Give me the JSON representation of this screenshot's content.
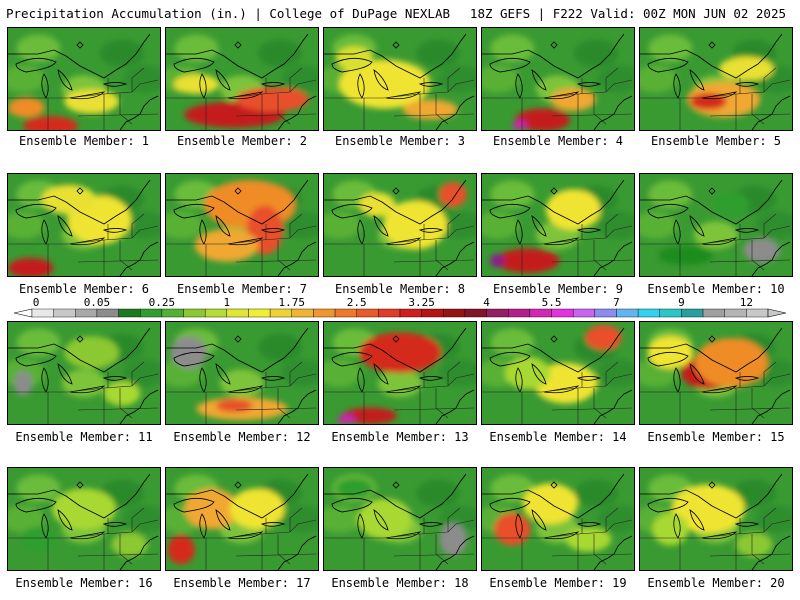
{
  "header": {
    "left_title": "Precipitation Accumulation (in.) | College of DuPage NEXLAB",
    "right_title": "18Z GEFS | F222 Valid: 00Z MON JUN 02 2025"
  },
  "caption_prefix": "Ensemble Member: ",
  "members": [
    {
      "id": 1,
      "label": "Ensemble Member: 1",
      "heavy": [
        [
          0.28,
          0.96,
          0.3,
          0.12,
          "#d42a1e"
        ],
        [
          0.12,
          0.78,
          0.2,
          0.12,
          "#f08c28"
        ],
        [
          0.55,
          0.72,
          0.3,
          0.15,
          "#e8e032"
        ]
      ]
    },
    {
      "id": 2,
      "label": "Ensemble Member: 2",
      "heavy": [
        [
          0.45,
          0.85,
          0.55,
          0.16,
          "#c41e1e"
        ],
        [
          0.7,
          0.7,
          0.4,
          0.15,
          "#e8502a"
        ],
        [
          0.2,
          0.55,
          0.25,
          0.12,
          "#e8e032"
        ]
      ]
    },
    {
      "id": 3,
      "label": "Ensemble Member: 3",
      "heavy": [
        [
          0.4,
          0.55,
          0.5,
          0.3,
          "#f0e432"
        ],
        [
          0.7,
          0.8,
          0.3,
          0.12,
          "#f0a830"
        ],
        [
          0.2,
          0.3,
          0.2,
          0.15,
          "#d8e030"
        ]
      ]
    },
    {
      "id": 4,
      "label": "Ensemble Member: 4",
      "heavy": [
        [
          0.4,
          0.9,
          0.3,
          0.14,
          "#c41e1e"
        ],
        [
          0.25,
          0.95,
          0.08,
          0.06,
          "#c828a8"
        ],
        [
          0.6,
          0.7,
          0.25,
          0.14,
          "#f0a830"
        ]
      ]
    },
    {
      "id": 5,
      "label": "Ensemble Member: 5",
      "heavy": [
        [
          0.55,
          0.7,
          0.4,
          0.22,
          "#f0a830"
        ],
        [
          0.45,
          0.72,
          0.2,
          0.1,
          "#d42a1e"
        ],
        [
          0.7,
          0.4,
          0.3,
          0.15,
          "#e8e032"
        ]
      ]
    },
    {
      "id": 6,
      "label": "Ensemble Member: 6",
      "heavy": [
        [
          0.15,
          0.92,
          0.25,
          0.12,
          "#c41e1e"
        ],
        [
          0.6,
          0.45,
          0.35,
          0.3,
          "#f0e432"
        ],
        [
          0.4,
          0.25,
          0.3,
          0.18,
          "#e8e032"
        ]
      ]
    },
    {
      "id": 7,
      "label": "Ensemble Member: 7",
      "heavy": [
        [
          0.55,
          0.3,
          0.5,
          0.3,
          "#f08c28"
        ],
        [
          0.65,
          0.55,
          0.2,
          0.3,
          "#e8502a"
        ],
        [
          0.4,
          0.7,
          0.35,
          0.2,
          "#f0a830"
        ]
      ]
    },
    {
      "id": 8,
      "label": "Ensemble Member: 8",
      "heavy": [
        [
          0.6,
          0.5,
          0.35,
          0.3,
          "#f0e432"
        ],
        [
          0.85,
          0.2,
          0.15,
          0.15,
          "#e8502a"
        ],
        [
          0.35,
          0.3,
          0.2,
          0.15,
          "#e8e032"
        ]
      ]
    },
    {
      "id": 9,
      "label": "Ensemble Member: 9",
      "heavy": [
        [
          0.3,
          0.85,
          0.35,
          0.15,
          "#c41e1e"
        ],
        [
          0.1,
          0.85,
          0.08,
          0.08,
          "#8c1e8c"
        ],
        [
          0.6,
          0.35,
          0.3,
          0.25,
          "#f0e432"
        ]
      ]
    },
    {
      "id": 10,
      "label": "Ensemble Member: 10",
      "heavy": [
        [
          0.8,
          0.75,
          0.2,
          0.15,
          "#8c8c8c"
        ],
        [
          0.3,
          0.8,
          0.3,
          0.12,
          "#1e8c1e"
        ],
        [
          0.6,
          0.3,
          0.2,
          0.15,
          "#2e9e2e"
        ]
      ]
    },
    {
      "id": 11,
      "label": "Ensemble Member: 11",
      "heavy": [
        [
          0.1,
          0.6,
          0.1,
          0.15,
          "#8c8c8c"
        ],
        [
          0.55,
          0.3,
          0.3,
          0.2,
          "#8cc830"
        ],
        [
          0.75,
          0.7,
          0.2,
          0.15,
          "#a8d832"
        ]
      ]
    },
    {
      "id": 12,
      "label": "Ensemble Member: 12",
      "heavy": [
        [
          0.5,
          0.85,
          0.5,
          0.14,
          "#f0a830"
        ],
        [
          0.45,
          0.82,
          0.2,
          0.08,
          "#e8502a"
        ],
        [
          0.15,
          0.3,
          0.2,
          0.2,
          "#8c8c8c"
        ]
      ]
    },
    {
      "id": 13,
      "label": "Ensemble Member: 13",
      "heavy": [
        [
          0.5,
          0.3,
          0.45,
          0.25,
          "#d42a1e"
        ],
        [
          0.3,
          0.92,
          0.3,
          0.1,
          "#c41e1e"
        ],
        [
          0.15,
          0.95,
          0.1,
          0.06,
          "#c828a8"
        ]
      ]
    },
    {
      "id": 14,
      "label": "Ensemble Member: 14",
      "heavy": [
        [
          0.8,
          0.15,
          0.2,
          0.15,
          "#e8502a"
        ],
        [
          0.55,
          0.6,
          0.35,
          0.25,
          "#f0e432"
        ],
        [
          0.3,
          0.5,
          0.25,
          0.2,
          "#a8d832"
        ]
      ]
    },
    {
      "id": 15,
      "label": "Ensemble Member: 15",
      "heavy": [
        [
          0.45,
          0.5,
          0.3,
          0.2,
          "#c41e1e"
        ],
        [
          0.6,
          0.4,
          0.4,
          0.3,
          "#f08c28"
        ],
        [
          0.2,
          0.3,
          0.25,
          0.2,
          "#f0e432"
        ]
      ]
    },
    {
      "id": 16,
      "label": "Ensemble Member: 16",
      "heavy": [
        [
          0.5,
          0.4,
          0.35,
          0.25,
          "#a8d832"
        ],
        [
          0.8,
          0.75,
          0.2,
          0.15,
          "#8cc830"
        ],
        [
          0.2,
          0.7,
          0.2,
          0.15,
          "#2e9e2e"
        ]
      ]
    },
    {
      "id": 17,
      "label": "Ensemble Member: 17",
      "heavy": [
        [
          0.1,
          0.8,
          0.15,
          0.18,
          "#d42a1e"
        ],
        [
          0.3,
          0.4,
          0.3,
          0.25,
          "#f0a830"
        ],
        [
          0.6,
          0.4,
          0.3,
          0.25,
          "#f0e432"
        ]
      ]
    },
    {
      "id": 18,
      "label": "Ensemble Member: 18",
      "heavy": [
        [
          0.85,
          0.7,
          0.15,
          0.2,
          "#8c8c8c"
        ],
        [
          0.4,
          0.5,
          0.3,
          0.25,
          "#a8d832"
        ],
        [
          0.2,
          0.2,
          0.2,
          0.12,
          "#2e9e2e"
        ]
      ]
    },
    {
      "id": 19,
      "label": "Ensemble Member: 19",
      "heavy": [
        [
          0.2,
          0.6,
          0.2,
          0.2,
          "#e8502a"
        ],
        [
          0.45,
          0.35,
          0.3,
          0.25,
          "#f0e432"
        ],
        [
          0.7,
          0.7,
          0.25,
          0.15,
          "#a8d832"
        ]
      ]
    },
    {
      "id": 20,
      "label": "Ensemble Member: 20",
      "heavy": [
        [
          0.45,
          0.4,
          0.4,
          0.3,
          "#f0e432"
        ],
        [
          0.2,
          0.6,
          0.2,
          0.2,
          "#a8d832"
        ],
        [
          0.75,
          0.75,
          0.2,
          0.15,
          "#8cc830"
        ]
      ]
    }
  ],
  "colorbar": {
    "ticks": [
      {
        "label": "0",
        "index": 0
      },
      {
        "label": "0.05",
        "index": 3
      },
      {
        "label": "0.25",
        "index": 6
      },
      {
        "label": "1",
        "index": 9
      },
      {
        "label": "1.75",
        "index": 12
      },
      {
        "label": "2.5",
        "index": 15
      },
      {
        "label": "3.25",
        "index": 18
      },
      {
        "label": "4",
        "index": 21
      },
      {
        "label": "5.5",
        "index": 24
      },
      {
        "label": "7",
        "index": 27
      },
      {
        "label": "9",
        "index": 30
      },
      {
        "label": "12",
        "index": 33
      }
    ],
    "colors": [
      "#e8e8e8",
      "#c8c8c8",
      "#a8a8a8",
      "#8c8c8c",
      "#1e7a1e",
      "#2e9e2e",
      "#50b432",
      "#8cc830",
      "#b4dc32",
      "#e0e632",
      "#f0f032",
      "#f0d232",
      "#f0b432",
      "#f0962d",
      "#f07828",
      "#e85a28",
      "#e03c28",
      "#d01e1e",
      "#b41414",
      "#961414",
      "#821428",
      "#961e64",
      "#b41e8c",
      "#d228b4",
      "#e632dc",
      "#c864f0",
      "#8c8cf0",
      "#64b4f0",
      "#32d2f0",
      "#28c8c8",
      "#28a0a0",
      "#a0a0a0",
      "#b4b4b4",
      "#c8c8c8"
    ]
  }
}
